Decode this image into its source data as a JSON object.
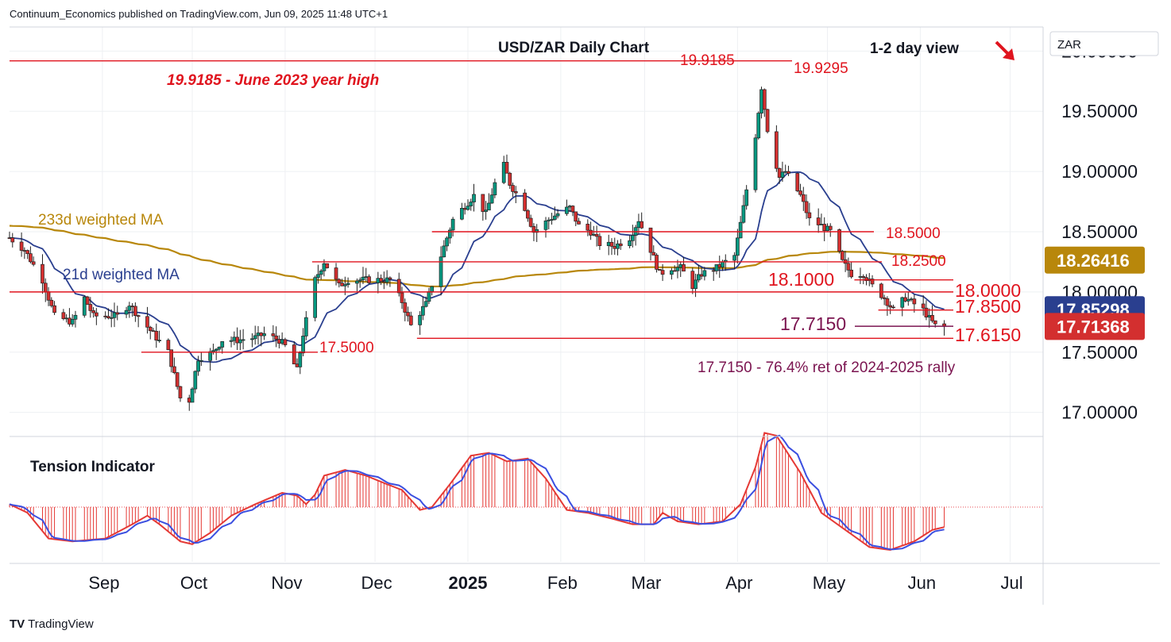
{
  "header": {
    "published": "Continuum_Economics published on TradingView.com, Jun 09, 2025 11:48 UTC+1"
  },
  "branding": {
    "logo_text": "TradingView",
    "logo_mark": "TV"
  },
  "colors": {
    "candle_up": "#089981",
    "candle_down": "#d32f2f",
    "support_resistance": "#e0141e",
    "retracement": "#7b1450",
    "ma21": "#2a3f8f",
    "ma233": "#b8870b",
    "tension_hist": "#e53935",
    "tension_signal": "#3b4fe0"
  },
  "chart_data": [
    {
      "type": "candlestick",
      "title": "USD/ZAR Daily Chart",
      "subtitle": "1-2 day view",
      "currency_label": "ZAR",
      "view_arrow": "down-right-arrow",
      "ylim": [
        16.8,
        20.2
      ],
      "x_ticks": [
        "Sep",
        "Oct",
        "Nov",
        "Dec",
        "2025",
        "Feb",
        "Mar",
        "Apr",
        "May",
        "Jun",
        "Jul"
      ],
      "y_ticks": [
        "17.00000",
        "17.50000",
        "18.00000",
        "18.50000",
        "19.00000",
        "19.50000",
        "20.00000"
      ],
      "y_tick_values": [
        17.0,
        17.5,
        18.0,
        18.5,
        19.0,
        19.5,
        20.0
      ],
      "price_badges": [
        {
          "label": "18.26416",
          "value": 18.26416,
          "color": "#b8870b"
        },
        {
          "label": "17.85298",
          "value": 17.85298,
          "color": "#2a3f8f"
        },
        {
          "label": "17.71368",
          "value": 17.71368,
          "color": "#d32f2f"
        }
      ],
      "levels": [
        {
          "value": 19.9185,
          "label": "19.9185",
          "note": "19.9185 - June 2023 year high"
        },
        {
          "value": 19.9295,
          "label": "19.9295"
        },
        {
          "value": 18.5,
          "label": "18.5000"
        },
        {
          "value": 18.25,
          "label": "18.2500"
        },
        {
          "value": 18.1,
          "label": "18.1000"
        },
        {
          "value": 18.0,
          "label": "18.0000"
        },
        {
          "value": 17.85,
          "label": "17.8500"
        },
        {
          "value": 17.715,
          "label": "17.7150",
          "note": "17.7150 - 76.4% ret of 2024-2025 rally"
        },
        {
          "value": 17.615,
          "label": "17.6150"
        },
        {
          "value": 17.5,
          "label": "17.5000"
        }
      ],
      "series": [
        {
          "name": "21d weighted MA",
          "type": "line"
        },
        {
          "name": "233d weighted MA",
          "type": "line"
        }
      ],
      "price_anchors": [
        [
          "2024-08-01",
          18.45
        ],
        [
          "2024-08-06",
          18.35
        ],
        [
          "2024-08-12",
          18.1
        ],
        [
          "2024-08-16",
          17.8
        ],
        [
          "2024-08-22",
          17.75
        ],
        [
          "2024-08-26",
          17.95
        ],
        [
          "2024-08-29",
          17.8
        ],
        [
          "2024-09-03",
          17.8
        ],
        [
          "2024-09-06",
          17.8
        ],
        [
          "2024-09-10",
          17.9
        ],
        [
          "2024-09-13",
          17.8
        ],
        [
          "2024-09-18",
          17.65
        ],
        [
          "2024-09-23",
          17.5
        ],
        [
          "2024-09-27",
          17.12
        ],
        [
          "2024-09-30",
          17.1
        ],
        [
          "2024-10-03",
          17.45
        ],
        [
          "2024-10-08",
          17.5
        ],
        [
          "2024-10-11",
          17.6
        ],
        [
          "2024-10-16",
          17.6
        ],
        [
          "2024-10-22",
          17.62
        ],
        [
          "2024-10-25",
          17.65
        ],
        [
          "2024-10-30",
          17.6
        ],
        [
          "2024-11-01",
          17.55
        ],
        [
          "2024-11-05",
          17.35
        ],
        [
          "2024-11-07",
          17.65
        ],
        [
          "2024-11-11",
          18.1
        ],
        [
          "2024-11-14",
          18.25
        ],
        [
          "2024-11-19",
          18.05
        ],
        [
          "2024-11-22",
          18.1
        ],
        [
          "2024-11-27",
          18.1
        ],
        [
          "2024-12-03",
          18.1
        ],
        [
          "2024-12-06",
          18.1
        ],
        [
          "2024-12-10",
          17.92
        ],
        [
          "2024-12-13",
          17.72
        ],
        [
          "2024-12-18",
          17.9
        ],
        [
          "2024-12-23",
          18.3
        ],
        [
          "2024-12-27",
          18.6
        ],
        [
          "2025-01-03",
          18.8
        ],
        [
          "2025-01-07",
          18.65
        ],
        [
          "2025-01-10",
          18.9
        ],
        [
          "2025-01-13",
          19.05
        ],
        [
          "2025-01-15",
          18.9
        ],
        [
          "2025-01-20",
          18.7
        ],
        [
          "2025-01-23",
          18.5
        ],
        [
          "2025-01-28",
          18.6
        ],
        [
          "2025-01-31",
          18.65
        ],
        [
          "2025-02-04",
          18.7
        ],
        [
          "2025-02-07",
          18.55
        ],
        [
          "2025-02-11",
          18.5
        ],
        [
          "2025-02-14",
          18.4
        ],
        [
          "2025-02-19",
          18.38
        ],
        [
          "2025-02-24",
          18.45
        ],
        [
          "2025-02-27",
          18.6
        ],
        [
          "2025-03-03",
          18.35
        ],
        [
          "2025-03-06",
          18.15
        ],
        [
          "2025-03-10",
          18.2
        ],
        [
          "2025-03-13",
          18.2
        ],
        [
          "2025-03-17",
          18.05
        ],
        [
          "2025-03-20",
          18.15
        ],
        [
          "2025-03-25",
          18.2
        ],
        [
          "2025-03-31",
          18.3
        ],
        [
          "2025-04-03",
          18.7
        ],
        [
          "2025-04-07",
          19.3
        ],
        [
          "2025-04-09",
          19.7
        ],
        [
          "2025-04-11",
          19.35
        ],
        [
          "2025-04-15",
          18.95
        ],
        [
          "2025-04-17",
          19.0
        ],
        [
          "2025-04-22",
          18.8
        ],
        [
          "2025-04-25",
          18.6
        ],
        [
          "2025-04-29",
          18.55
        ],
        [
          "2025-05-02",
          18.5
        ],
        [
          "2025-05-06",
          18.25
        ],
        [
          "2025-05-09",
          18.15
        ],
        [
          "2025-05-13",
          18.15
        ],
        [
          "2025-05-16",
          18.05
        ],
        [
          "2025-05-20",
          17.95
        ],
        [
          "2025-05-23",
          17.85
        ],
        [
          "2025-05-27",
          17.95
        ],
        [
          "2025-05-30",
          17.9
        ],
        [
          "2025-06-02",
          17.85
        ],
        [
          "2025-06-04",
          17.78
        ],
        [
          "2025-06-06",
          17.72
        ],
        [
          "2025-06-09",
          17.71
        ]
      ]
    },
    {
      "type": "area",
      "title": "Tension Indicator",
      "series_anchors": [
        [
          "2024-08-01",
          0.05
        ],
        [
          "2024-08-07",
          -0.1
        ],
        [
          "2024-08-14",
          -0.55
        ],
        [
          "2024-08-22",
          -0.6
        ],
        [
          "2024-09-02",
          -0.55
        ],
        [
          "2024-09-11",
          -0.3
        ],
        [
          "2024-09-16",
          -0.15
        ],
        [
          "2024-09-20",
          -0.3
        ],
        [
          "2024-09-27",
          -0.6
        ],
        [
          "2024-10-01",
          -0.65
        ],
        [
          "2024-10-07",
          -0.45
        ],
        [
          "2024-10-14",
          -0.15
        ],
        [
          "2024-10-22",
          0.05
        ],
        [
          "2024-10-31",
          0.25
        ],
        [
          "2024-11-05",
          0.2
        ],
        [
          "2024-11-09",
          0.0
        ],
        [
          "2024-11-14",
          0.55
        ],
        [
          "2024-11-21",
          0.65
        ],
        [
          "2024-11-28",
          0.55
        ],
        [
          "2024-12-05",
          0.4
        ],
        [
          "2024-12-10",
          0.3
        ],
        [
          "2024-12-16",
          -0.05
        ],
        [
          "2024-12-20",
          0.0
        ],
        [
          "2024-12-26",
          0.4
        ],
        [
          "2025-01-02",
          0.9
        ],
        [
          "2025-01-08",
          0.95
        ],
        [
          "2025-01-14",
          0.8
        ],
        [
          "2025-01-21",
          0.85
        ],
        [
          "2025-01-27",
          0.5
        ],
        [
          "2025-02-03",
          -0.05
        ],
        [
          "2025-02-10",
          -0.1
        ],
        [
          "2025-02-18",
          -0.2
        ],
        [
          "2025-02-25",
          -0.3
        ],
        [
          "2025-03-04",
          -0.3
        ],
        [
          "2025-03-07",
          -0.1
        ],
        [
          "2025-03-12",
          -0.25
        ],
        [
          "2025-03-19",
          -0.3
        ],
        [
          "2025-03-27",
          -0.25
        ],
        [
          "2025-04-02",
          0.05
        ],
        [
          "2025-04-07",
          0.7
        ],
        [
          "2025-04-10",
          1.3
        ],
        [
          "2025-04-14",
          1.25
        ],
        [
          "2025-04-22",
          0.6
        ],
        [
          "2025-04-29",
          -0.1
        ],
        [
          "2025-05-07",
          -0.4
        ],
        [
          "2025-05-15",
          -0.7
        ],
        [
          "2025-05-22",
          -0.75
        ],
        [
          "2025-05-30",
          -0.6
        ],
        [
          "2025-06-05",
          -0.4
        ],
        [
          "2025-06-09",
          -0.35
        ]
      ]
    }
  ]
}
